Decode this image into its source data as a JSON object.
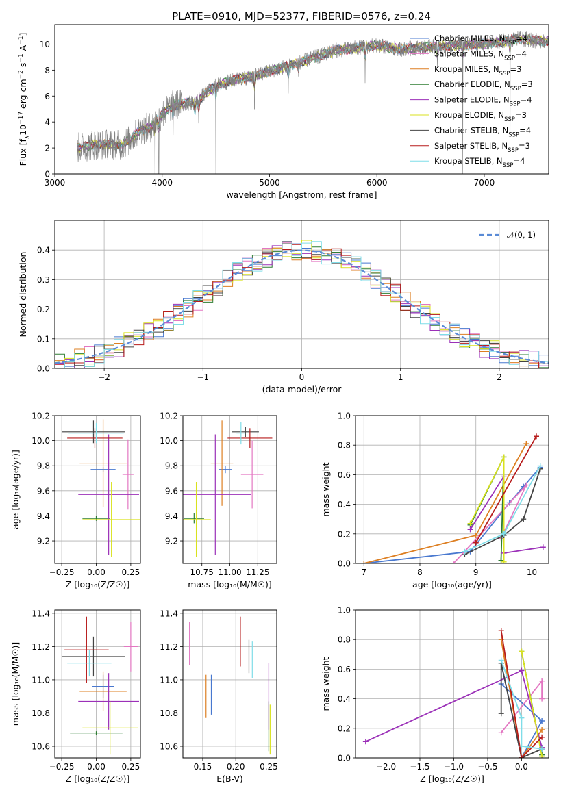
{
  "figure": {
    "title": "PLATE=0910, MJD=52377, FIBERID=0576, z=0.24"
  },
  "colors": {
    "Chabrier MILES": "#4878cf",
    "Salpeter MILES": "#e377c2",
    "Kroupa MILES": "#dd7f22",
    "Chabrier ELODIE": "#2e7d32",
    "Salpeter ELODIE": "#9b30b8",
    "Kroupa ELODIE": "#d9e21f",
    "Chabrier STELIB": "#444444",
    "Salpeter STELIB": "#b71c1c",
    "Kroupa STELIB": "#7fdde8",
    "spectrum": "#808080",
    "normal": "#5a8bd6",
    "grid": "#b0b0b0"
  },
  "legend_spectrum": [
    {
      "key": "Chabrier MILES",
      "label": "Chabrier MILES, N",
      "sub": "SSP",
      "tail": "=4"
    },
    {
      "key": "Salpeter MILES",
      "label": "Salpeter MILES, N",
      "sub": "SSP",
      "tail": "=4"
    },
    {
      "key": "Kroupa MILES",
      "label": "Kroupa MILES, N",
      "sub": "SSP",
      "tail": "=3"
    },
    {
      "key": "Chabrier ELODIE",
      "label": "Chabrier ELODIE, N",
      "sub": "SSP",
      "tail": "=3"
    },
    {
      "key": "Salpeter ELODIE",
      "label": "Salpeter ELODIE, N",
      "sub": "SSP",
      "tail": "=4"
    },
    {
      "key": "Kroupa ELODIE",
      "label": "Kroupa ELODIE, N",
      "sub": "SSP",
      "tail": "=3"
    },
    {
      "key": "Chabrier STELIB",
      "label": "Chabrier STELIB, N",
      "sub": "SSP",
      "tail": "=4"
    },
    {
      "key": "Salpeter STELIB",
      "label": "Salpeter STELIB, N",
      "sub": "SSP",
      "tail": "=3"
    },
    {
      "key": "Kroupa STELIB",
      "label": "Kroupa STELIB, N",
      "sub": "SSP",
      "tail": "=4"
    }
  ],
  "chart_data": [
    {
      "id": "spectrum",
      "type": "line",
      "xlabel": "wavelength [Angstrom, rest frame]",
      "ylabel_parts": [
        "Flux [f",
        "λ",
        "10",
        "−17",
        " erg cm",
        "−2",
        " s",
        "−1",
        " A",
        "−1",
        "]"
      ],
      "xlim": [
        3000,
        7600
      ],
      "ylim": [
        0,
        11.5
      ],
      "xticks": [
        3000,
        4000,
        5000,
        6000,
        7000
      ],
      "yticks": [
        0,
        2,
        4,
        6,
        8,
        10
      ],
      "grid": false,
      "legend": "top-right",
      "continuum": [
        [
          3210,
          2.0
        ],
        [
          3400,
          2.3
        ],
        [
          3600,
          2.2
        ],
        [
          3700,
          2.6
        ],
        [
          3800,
          3.4
        ],
        [
          3900,
          3.6
        ],
        [
          4000,
          4.6
        ],
        [
          4100,
          5.3
        ],
        [
          4300,
          5.5
        ],
        [
          4500,
          6.8
        ],
        [
          4700,
          7.3
        ],
        [
          4900,
          7.6
        ],
        [
          5000,
          7.9
        ],
        [
          5200,
          8.4
        ],
        [
          5400,
          8.9
        ],
        [
          5600,
          9.5
        ],
        [
          5800,
          9.7
        ],
        [
          6000,
          9.9
        ],
        [
          6200,
          9.6
        ],
        [
          6500,
          9.8
        ],
        [
          6800,
          9.9
        ],
        [
          7000,
          10.0
        ],
        [
          7300,
          10.4
        ],
        [
          7600,
          10.2
        ]
      ],
      "absorption_lines": [
        [
          3934,
          0
        ],
        [
          3969,
          0
        ],
        [
          4102,
          3.0
        ],
        [
          4305,
          3.8
        ],
        [
          4340,
          3.9
        ],
        [
          4500,
          0
        ],
        [
          4861,
          5.0
        ],
        [
          5175,
          6.2
        ],
        [
          5270,
          7.5
        ],
        [
          5890,
          7.0
        ],
        [
          6563,
          8.2
        ],
        [
          6800,
          0
        ],
        [
          7240,
          0
        ]
      ]
    },
    {
      "id": "residuals",
      "type": "histogram",
      "xlabel": "(data-model)/error",
      "ylabel": "Normed distribution",
      "xlim": [
        -2.5,
        2.5
      ],
      "ylim": [
        0,
        0.5
      ],
      "xticks": [
        -2,
        -1,
        0,
        1,
        2
      ],
      "yticks": [
        0.0,
        0.1,
        0.2,
        0.3,
        0.4
      ],
      "grid": true,
      "bin_width": 0.1,
      "reference_label": "𝒩(0, 1)",
      "legend": "top-right"
    },
    {
      "id": "age-vs-Z",
      "type": "errorbar",
      "xlabel": "Z [log₁₀(Z/Z☉)]",
      "ylabel": "age  [log₁₀(age/yr)]",
      "xlim": [
        -0.3,
        0.32
      ],
      "ylim": [
        9.02,
        10.2
      ],
      "xticks": [
        -0.25,
        0.0,
        0.25
      ],
      "yticks": [
        9.2,
        9.4,
        9.6,
        9.8,
        10.0,
        10.2
      ],
      "grid": true,
      "points": [
        {
          "key": "Chabrier MILES",
          "x": 0.05,
          "xerr": 0.09,
          "y": 9.77,
          "yerr": 0.02
        },
        {
          "key": "Salpeter MILES",
          "x": 0.23,
          "xerr": 0.04,
          "y": 9.73,
          "yerr": 0.28
        },
        {
          "key": "Kroupa MILES",
          "x": 0.05,
          "xerr": 0.17,
          "y": 9.82,
          "yerr": 0.35
        },
        {
          "key": "Chabrier ELODIE",
          "x": 0.0,
          "xerr": 0.1,
          "y": 9.38,
          "yerr": 0.02
        },
        {
          "key": "Salpeter ELODIE",
          "x": 0.09,
          "xerr": 0.22,
          "y": 9.57,
          "yerr": 0.48
        },
        {
          "key": "Kroupa ELODIE",
          "x": 0.11,
          "xerr": 0.21,
          "y": 9.37,
          "yerr": 0.3
        },
        {
          "key": "Chabrier STELIB",
          "x": -0.02,
          "xerr": 0.23,
          "y": 10.07,
          "yerr": 0.09
        },
        {
          "key": "Salpeter STELIB",
          "x": -0.01,
          "xerr": 0.2,
          "y": 10.02,
          "yerr": 0.08
        },
        {
          "key": "Kroupa STELIB",
          "x": 0.0,
          "xerr": 0.2,
          "y": 10.06,
          "yerr": 0.08
        }
      ]
    },
    {
      "id": "age-vs-mass",
      "type": "errorbar",
      "xlabel": "mass [log₁₀(M/M☉)]",
      "ylabel": "",
      "xlim": [
        10.58,
        11.42
      ],
      "ylim": [
        9.02,
        10.2
      ],
      "xticks": [
        10.75,
        11.0,
        11.25
      ],
      "xtick_labels": [
        "10.75",
        "11.00",
        "11.25"
      ],
      "yticks": [
        9.2,
        9.4,
        9.6,
        9.8,
        10.0,
        10.2
      ],
      "grid": true,
      "points": [
        {
          "key": "Chabrier MILES",
          "x": 10.96,
          "xerr": 0.06,
          "y": 9.77,
          "yerr": 0.03
        },
        {
          "key": "Salpeter MILES",
          "x": 11.2,
          "xerr": 0.1,
          "y": 9.73,
          "yerr": 0.27
        },
        {
          "key": "Kroupa MILES",
          "x": 10.93,
          "xerr": 0.1,
          "y": 9.82,
          "yerr": 0.34
        },
        {
          "key": "Chabrier ELODIE",
          "x": 10.68,
          "xerr": 0.09,
          "y": 9.38,
          "yerr": 0.04
        },
        {
          "key": "Salpeter ELODIE",
          "x": 10.87,
          "xerr": 0.32,
          "y": 9.57,
          "yerr": 0.48
        },
        {
          "key": "Kroupa ELODIE",
          "x": 10.7,
          "xerr": 0.13,
          "y": 9.37,
          "yerr": 0.3
        },
        {
          "key": "Chabrier STELIB",
          "x": 11.14,
          "xerr": 0.12,
          "y": 10.07,
          "yerr": 0.04
        },
        {
          "key": "Salpeter STELIB",
          "x": 11.18,
          "xerr": 0.2,
          "y": 10.02,
          "yerr": 0.08
        },
        {
          "key": "Kroupa STELIB",
          "x": 11.1,
          "xerr": 0.04,
          "y": 10.06,
          "yerr": 0.09
        }
      ]
    },
    {
      "id": "mass-weight-vs-age",
      "type": "line",
      "xlabel": "age  [log₁₀(age/yr)]",
      "ylabel": "mass weight",
      "xlim": [
        6.85,
        10.3
      ],
      "ylim": [
        0,
        1.0
      ],
      "xticks": [
        7,
        8,
        9,
        10
      ],
      "yticks": [
        0.0,
        0.2,
        0.4,
        0.6,
        0.8,
        1.0
      ],
      "grid": true,
      "series": [
        {
          "key": "Chabrier MILES",
          "points": [
            [
              7.0,
              0.0
            ],
            [
              8.9,
              0.08
            ],
            [
              9.6,
              0.41
            ],
            [
              9.85,
              0.52
            ],
            [
              10.15,
              0.65
            ]
          ]
        },
        {
          "key": "Salpeter MILES",
          "points": [
            [
              9.45,
              0.17
            ],
            [
              9.9,
              0.53
            ],
            [
              8.6,
              0.0
            ]
          ]
        },
        {
          "key": "Kroupa MILES",
          "points": [
            [
              7.0,
              0.0
            ],
            [
              9.0,
              0.19
            ],
            [
              9.9,
              0.81
            ]
          ]
        },
        {
          "key": "Chabrier ELODIE",
          "points": [
            [
              8.9,
              0.26
            ],
            [
              9.5,
              0.72
            ],
            [
              9.45,
              0.02
            ]
          ]
        },
        {
          "key": "Salpeter ELODIE",
          "points": [
            [
              8.9,
              0.23
            ],
            [
              9.5,
              0.59
            ],
            [
              9.5,
              0.07
            ],
            [
              10.2,
              0.11
            ]
          ]
        },
        {
          "key": "Kroupa ELODIE",
          "points": [
            [
              8.9,
              0.27
            ],
            [
              9.5,
              0.72
            ],
            [
              9.5,
              0.01
            ]
          ]
        },
        {
          "key": "Chabrier STELIB",
          "points": [
            [
              8.8,
              0.06
            ],
            [
              9.5,
              0.19
            ],
            [
              9.85,
              0.3
            ],
            [
              10.15,
              0.64
            ]
          ]
        },
        {
          "key": "Salpeter STELIB",
          "points": [
            [
              9.0,
              0.14
            ],
            [
              10.08,
              0.86
            ]
          ]
        },
        {
          "key": "Kroupa STELIB",
          "points": [
            [
              8.8,
              0.08
            ],
            [
              9.5,
              0.2
            ],
            [
              10.15,
              0.66
            ]
          ]
        }
      ]
    },
    {
      "id": "mass-vs-Z",
      "type": "errorbar",
      "xlabel": "Z [log₁₀(Z/Z☉)]",
      "ylabel": "mass [log₁₀(M/M☉)]",
      "xlim": [
        -0.3,
        0.32
      ],
      "ylim": [
        10.53,
        11.42
      ],
      "xticks": [
        -0.25,
        0.0,
        0.25
      ],
      "yticks": [
        10.6,
        10.8,
        11.0,
        11.2,
        11.4
      ],
      "grid": true,
      "points": [
        {
          "key": "Chabrier MILES",
          "x": 0.05,
          "xerr": 0.08,
          "y": 10.96,
          "yerr": 0.07
        },
        {
          "key": "Salpeter MILES",
          "x": 0.25,
          "xerr": 0.05,
          "y": 11.2,
          "yerr": 0.15
        },
        {
          "key": "Kroupa MILES",
          "x": 0.05,
          "xerr": 0.17,
          "y": 10.93,
          "yerr": 0.12
        },
        {
          "key": "Chabrier ELODIE",
          "x": 0.0,
          "xerr": 0.19,
          "y": 10.68,
          "yerr": 0.01
        },
        {
          "key": "Salpeter ELODIE",
          "x": 0.09,
          "xerr": 0.22,
          "y": 10.87,
          "yerr": 0.17
        },
        {
          "key": "Kroupa ELODIE",
          "x": 0.1,
          "xerr": 0.2,
          "y": 10.71,
          "yerr": 0.16
        },
        {
          "key": "Chabrier STELIB",
          "x": -0.02,
          "xerr": 0.23,
          "y": 11.14,
          "yerr": 0.12
        },
        {
          "key": "Salpeter STELIB",
          "x": -0.07,
          "xerr": 0.16,
          "y": 11.18,
          "yerr": 0.2
        },
        {
          "key": "Kroupa STELIB",
          "x": -0.05,
          "xerr": 0.16,
          "y": 11.1,
          "yerr": 0.08
        }
      ]
    },
    {
      "id": "mass-vs-EBV",
      "type": "errorbar",
      "xlabel": "E(B-V)",
      "ylabel": "",
      "xlim": [
        0.12,
        0.262
      ],
      "ylim": [
        10.53,
        11.42
      ],
      "xticks": [
        0.15,
        0.2,
        0.25
      ],
      "yticks": [
        10.6,
        10.8,
        11.0,
        11.2,
        11.4
      ],
      "grid": true,
      "points": [
        {
          "key": "Chabrier MILES",
          "x": 0.163,
          "xerr": 0.0,
          "y": 10.91,
          "yerr": 0.12
        },
        {
          "key": "Salpeter MILES",
          "x": 0.13,
          "xerr": 0.0,
          "y": 11.22,
          "yerr": 0.13
        },
        {
          "key": "Kroupa MILES",
          "x": 0.155,
          "xerr": 0.0,
          "y": 10.9,
          "yerr": 0.13
        },
        {
          "key": "Chabrier ELODIE",
          "x": 0.25,
          "xerr": 0.0,
          "y": 10.72,
          "yerr": 0.15
        },
        {
          "key": "Salpeter ELODIE",
          "x": 0.25,
          "xerr": 0.0,
          "y": 10.9,
          "yerr": 0.2
        },
        {
          "key": "Kroupa ELODIE",
          "x": 0.252,
          "xerr": 0.0,
          "y": 10.7,
          "yerr": 0.15
        },
        {
          "key": "Chabrier STELIB",
          "x": 0.22,
          "xerr": 0.0,
          "y": 11.14,
          "yerr": 0.1
        },
        {
          "key": "Salpeter STELIB",
          "x": 0.207,
          "xerr": 0.0,
          "y": 11.23,
          "yerr": 0.15
        },
        {
          "key": "Kroupa STELIB",
          "x": 0.225,
          "xerr": 0.0,
          "y": 11.12,
          "yerr": 0.11
        }
      ]
    },
    {
      "id": "mass-weight-vs-Z",
      "type": "line",
      "xlabel": "Z [log₁₀(Z/Z☉)]",
      "ylabel": "mass weight",
      "xlim": [
        -2.45,
        0.4
      ],
      "ylim": [
        0,
        1.0
      ],
      "xticks": [
        -2.0,
        -1.5,
        -1.0,
        -0.5,
        0.0
      ],
      "yticks": [
        0.0,
        0.2,
        0.4,
        0.6,
        0.8,
        1.0
      ],
      "grid": true,
      "series": [
        {
          "key": "Chabrier MILES",
          "points": [
            [
              -0.3,
              0.64
            ],
            [
              0.0,
              0.0
            ],
            [
              0.3,
              0.25
            ],
            [
              -0.3,
              0.5
            ]
          ]
        },
        {
          "key": "Salpeter MILES",
          "points": [
            [
              -0.3,
              0.17
            ],
            [
              0.3,
              0.52
            ],
            [
              0.3,
              0.4
            ]
          ]
        },
        {
          "key": "Kroupa MILES",
          "points": [
            [
              -0.3,
              0.8
            ],
            [
              0.0,
              0.0
            ],
            [
              0.3,
              0.19
            ]
          ]
        },
        {
          "key": "Chabrier ELODIE",
          "points": [
            [
              0.0,
              0.72
            ],
            [
              0.3,
              0.02
            ]
          ]
        },
        {
          "key": "Salpeter ELODIE",
          "points": [
            [
              -2.3,
              0.11
            ],
            [
              0.0,
              0.59
            ],
            [
              0.3,
              0.07
            ]
          ]
        },
        {
          "key": "Kroupa ELODIE",
          "points": [
            [
              0.0,
              0.72
            ],
            [
              0.3,
              0.01
            ]
          ]
        },
        {
          "key": "Chabrier STELIB",
          "points": [
            [
              -0.3,
              0.3
            ],
            [
              -0.3,
              0.64
            ],
            [
              0.0,
              0.0
            ],
            [
              0.3,
              0.06
            ]
          ]
        },
        {
          "key": "Salpeter STELIB",
          "points": [
            [
              -0.3,
              0.86
            ],
            [
              0.0,
              0.0
            ],
            [
              0.3,
              0.14
            ]
          ]
        },
        {
          "key": "Kroupa STELIB",
          "points": [
            [
              -0.3,
              0.66
            ],
            [
              0.0,
              0.27
            ],
            [
              0.0,
              0.08
            ],
            [
              0.3,
              0.06
            ]
          ]
        }
      ]
    }
  ]
}
